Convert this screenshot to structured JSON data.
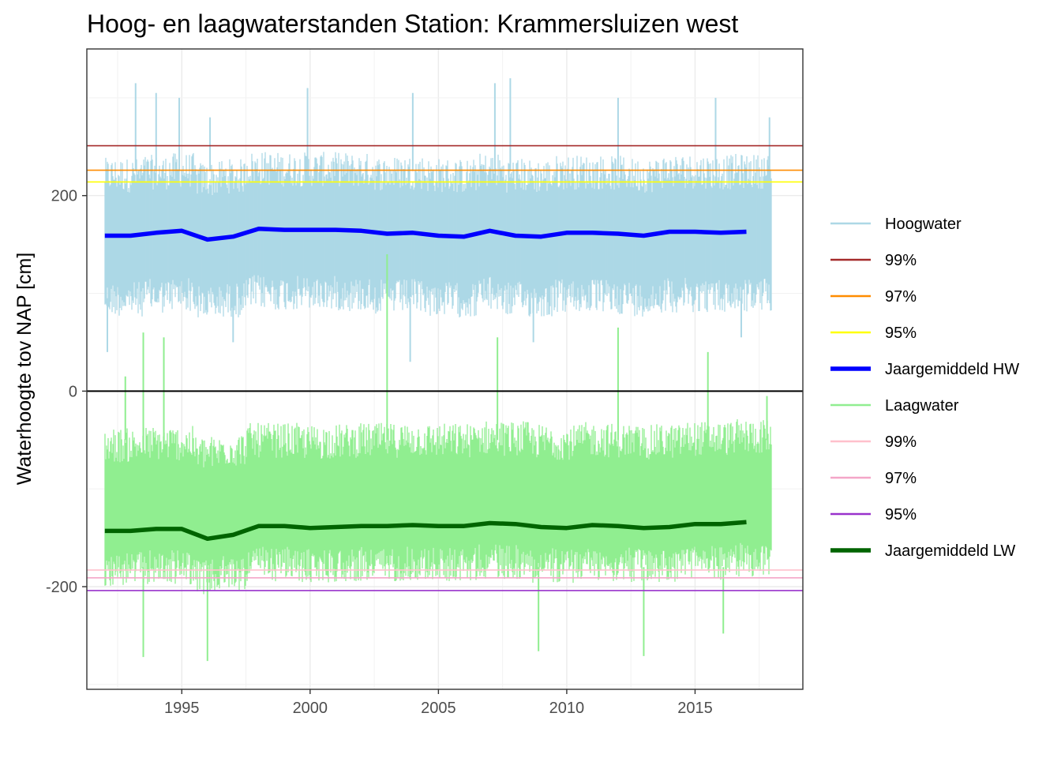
{
  "chart_data": {
    "type": "line",
    "title": "Hoog- en laagwaterstanden Station: Krammersluizen west",
    "xlabel": "",
    "ylabel": "Waterhoogte tov NAP [cm]",
    "xlim": [
      1991.3,
      2019.2
    ],
    "ylim": [
      -305,
      350
    ],
    "x_ticks": [
      1995,
      2000,
      2005,
      2010,
      2015
    ],
    "x_tick_labels": [
      "1995",
      "2000",
      "2005",
      "2010",
      "2015"
    ],
    "y_ticks": [
      -200,
      0,
      200
    ],
    "y_tick_labels": [
      "-200",
      "0",
      "200"
    ],
    "grid": true,
    "legend_position": "right",
    "reference_lines": [
      {
        "name": "99%",
        "y": 251,
        "color": "#a52a2a"
      },
      {
        "name": "97%",
        "y": 226,
        "color": "#ff8c00"
      },
      {
        "name": "95%",
        "y": 214,
        "color": "#ffff00"
      },
      {
        "name": "99%",
        "y": -183,
        "color": "#ffc0cb"
      },
      {
        "name": "97%",
        "y": -191,
        "color": "#f4a6c8"
      },
      {
        "name": "95%",
        "y": -204,
        "color": "#9932cc"
      },
      {
        "name": "",
        "y": 0,
        "color": "#000000"
      }
    ],
    "series": [
      {
        "name": "Hoogwater",
        "color": "#add8e6",
        "x_range": [
          1992.0,
          2018.0
        ],
        "typical_range": [
          95,
          225
        ],
        "extremes": [
          {
            "x": 1993.2,
            "y": 315
          },
          {
            "x": 1994.0,
            "y": 305
          },
          {
            "x": 1994.9,
            "y": 300
          },
          {
            "x": 1996.1,
            "y": 280
          },
          {
            "x": 1999.9,
            "y": 310
          },
          {
            "x": 2004.0,
            "y": 305
          },
          {
            "x": 2007.2,
            "y": 315
          },
          {
            "x": 2007.8,
            "y": 320
          },
          {
            "x": 2012.0,
            "y": 300
          },
          {
            "x": 2015.8,
            "y": 300
          },
          {
            "x": 2017.9,
            "y": 280
          },
          {
            "x": 1992.1,
            "y": 40
          },
          {
            "x": 1997.0,
            "y": 50
          },
          {
            "x": 2003.9,
            "y": 30
          },
          {
            "x": 2008.7,
            "y": 50
          },
          {
            "x": 2016.8,
            "y": 55
          }
        ]
      },
      {
        "name": "Jaargemiddeld HW",
        "color": "#0000ff",
        "x": [
          1992,
          1993,
          1994,
          1995,
          1996,
          1997,
          1998,
          1999,
          2000,
          2001,
          2002,
          2003,
          2004,
          2005,
          2006,
          2007,
          2008,
          2009,
          2010,
          2011,
          2012,
          2013,
          2014,
          2015,
          2016,
          2017
        ],
        "y": [
          159,
          159,
          162,
          164,
          155,
          158,
          166,
          165,
          165,
          165,
          164,
          161,
          162,
          159,
          158,
          164,
          159,
          158,
          162,
          162,
          161,
          159,
          163,
          163,
          162,
          163
        ]
      },
      {
        "name": "Laagwater",
        "color": "#90ee90",
        "x_range": [
          1992.0,
          2018.0
        ],
        "typical_range": [
          -180,
          -50
        ],
        "extremes": [
          {
            "x": 1992.8,
            "y": 15
          },
          {
            "x": 1993.5,
            "y": 60
          },
          {
            "x": 1994.3,
            "y": 55
          },
          {
            "x": 2003.0,
            "y": 140
          },
          {
            "x": 2007.3,
            "y": 55
          },
          {
            "x": 2012.0,
            "y": 65
          },
          {
            "x": 2015.5,
            "y": 40
          },
          {
            "x": 2017.8,
            "y": -5
          },
          {
            "x": 1993.5,
            "y": -272
          },
          {
            "x": 1996.0,
            "y": -276
          },
          {
            "x": 2008.9,
            "y": -266
          },
          {
            "x": 2013.0,
            "y": -271
          },
          {
            "x": 2016.1,
            "y": -248
          }
        ]
      },
      {
        "name": "Jaargemiddeld LW",
        "color": "#006400",
        "x": [
          1992,
          1993,
          1994,
          1995,
          1996,
          1997,
          1998,
          1999,
          2000,
          2001,
          2002,
          2003,
          2004,
          2005,
          2006,
          2007,
          2008,
          2009,
          2010,
          2011,
          2012,
          2013,
          2014,
          2015,
          2016,
          2017
        ],
        "y": [
          -143,
          -143,
          -141,
          -141,
          -151,
          -147,
          -138,
          -138,
          -140,
          -139,
          -138,
          -138,
          -137,
          -138,
          -138,
          -135,
          -136,
          -139,
          -140,
          -137,
          -138,
          -140,
          -139,
          -136,
          -136,
          -134
        ]
      }
    ],
    "legend": [
      {
        "label": "Hoogwater",
        "color": "#add8e6",
        "width": 2
      },
      {
        "label": "99%",
        "color": "#a52a2a",
        "width": 2
      },
      {
        "label": "97%",
        "color": "#ff8c00",
        "width": 2
      },
      {
        "label": "95%",
        "color": "#ffff00",
        "width": 2
      },
      {
        "label": "Jaargemiddeld HW",
        "color": "#0000ff",
        "width": 5
      },
      {
        "label": "Laagwater",
        "color": "#90ee90",
        "width": 2
      },
      {
        "label": "99%",
        "color": "#ffc0cb",
        "width": 2
      },
      {
        "label": "97%",
        "color": "#f4a6c8",
        "width": 2
      },
      {
        "label": "95%",
        "color": "#9932cc",
        "width": 2
      },
      {
        "label": "Jaargemiddeld LW",
        "color": "#006400",
        "width": 5
      }
    ]
  }
}
